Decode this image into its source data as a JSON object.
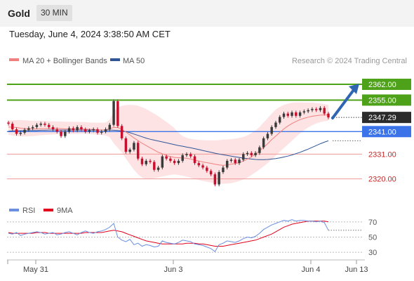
{
  "header": {
    "title": "Gold",
    "timeframe": "30 MIN"
  },
  "timestamp": "Tuesday, June 4, 2024 3:38:50 AM CET",
  "legend": {
    "ma20_label": "MA 20 + Bollinger Bands",
    "ma50_label": "MA 50",
    "credit": "Research © 2024 Trading Central",
    "rsi_label": "RSI",
    "rsi_ma_label": "9MA"
  },
  "colors": {
    "ma20": "#f08080",
    "band_fill": "#fde3e3",
    "ma50": "#2f5597",
    "green_level": "#4ea21a",
    "blue_level": "#3b73e8",
    "red_level": "#ef9a9a",
    "candle_up": "#3a3a3a",
    "candle_down": "#c8102e",
    "arrow": "#2e66b3",
    "rsi": "#6a8ee0",
    "rsi_ma": "#e2001a"
  },
  "chart_data": {
    "type": "candlestick",
    "instrument": "Gold",
    "timeframe": "30 MIN",
    "x_tick_labels": [
      "May 31",
      "Jun 3",
      "Jun 4",
      "Jun 13"
    ],
    "ylim": [
      2315,
      2367
    ],
    "current_price": 2347.29,
    "levels": [
      {
        "value": "2362.00",
        "style": "resistance",
        "color": "green"
      },
      {
        "value": "2355.00",
        "style": "resistance",
        "color": "green"
      },
      {
        "value": "2341.00",
        "style": "pivot",
        "color": "blue"
      },
      {
        "value": "2331.00",
        "style": "support",
        "color": "red"
      },
      {
        "value": "2320.00",
        "style": "support",
        "color": "red"
      }
    ],
    "forecast_arrow": {
      "from": 2347,
      "to": 2362
    },
    "close": [
      2344.5,
      2342.0,
      2340.0,
      2340.5,
      2341.8,
      2342.5,
      2343.0,
      2344.0,
      2344.5,
      2344.0,
      2343.0,
      2342.0,
      2341.0,
      2339.0,
      2341.0,
      2342.5,
      2341.5,
      2343.0,
      2342.0,
      2341.0,
      2341.5,
      2342.0,
      2340.5,
      2341.0,
      2342.0,
      2344.0,
      2354.5,
      2343.5,
      2338.0,
      2332.0,
      2333.0,
      2336.0,
      2329.0,
      2326.5,
      2328.0,
      2327.5,
      2324.0,
      2325.0,
      2330.0,
      2329.0,
      2328.0,
      2327.0,
      2328.0,
      2330.5,
      2331.0,
      2330.0,
      2327.0,
      2326.0,
      2325.0,
      2323.5,
      2322.0,
      2317.5,
      2323.0,
      2325.0,
      2328.0,
      2328.5,
      2327.0,
      2328.5,
      2331.0,
      2331.5,
      2330.5,
      2331.5,
      2334.0,
      2338.0,
      2340.0,
      2343.0,
      2345.0,
      2347.5,
      2349.0,
      2348.0,
      2349.5,
      2348.0,
      2349.5,
      2350.0,
      2350.5,
      2351.0,
      2350.5,
      2351.5,
      2349.0,
      2347.29
    ],
    "ma20": [
      2343.0,
      2343.0,
      2342.8,
      2342.5,
      2342.3,
      2342.2,
      2342.2,
      2342.2,
      2342.3,
      2342.3,
      2342.4,
      2342.4,
      2342.4,
      2342.3,
      2342.2,
      2342.2,
      2342.2,
      2342.2,
      2342.2,
      2342.1,
      2342.0,
      2342.0,
      2341.8,
      2341.7,
      2341.8,
      2342.3,
      2342.8,
      2342.8,
      2342.0,
      2340.8,
      2339.5,
      2338.2,
      2337.0,
      2335.8,
      2334.8,
      2333.8,
      2332.8,
      2331.8,
      2331.2,
      2330.4,
      2329.9,
      2329.5,
      2329.4,
      2329.3,
      2329.1,
      2328.8,
      2328.3,
      2327.9,
      2327.5,
      2327.2,
      2326.9,
      2326.5,
      2326.2,
      2326.0,
      2326.2,
      2326.5,
      2326.8,
      2327.2,
      2327.9,
      2328.8,
      2329.8,
      2331.0,
      2332.4,
      2334.0,
      2335.6,
      2337.4,
      2339.0,
      2340.6,
      2342.2,
      2343.5,
      2344.6,
      2345.5,
      2346.3,
      2346.9,
      2347.4,
      2347.8,
      2348.1,
      2348.3,
      2348.4,
      2348.4
    ],
    "bb_upper": [
      2345.8,
      2346.0,
      2346.1,
      2346.1,
      2346.0,
      2345.9,
      2345.8,
      2345.8,
      2345.8,
      2345.7,
      2345.6,
      2345.6,
      2345.5,
      2345.5,
      2345.4,
      2345.4,
      2345.3,
      2345.3,
      2345.2,
      2345.2,
      2345.0,
      2345.0,
      2344.9,
      2344.9,
      2345.0,
      2346.2,
      2350.0,
      2351.8,
      2352.4,
      2352.8,
      2352.9,
      2352.8,
      2352.5,
      2351.8,
      2351.0,
      2350.0,
      2349.0,
      2347.8,
      2346.6,
      2345.3,
      2344.0,
      2342.4,
      2340.5,
      2339.0,
      2338.2,
      2337.8,
      2337.5,
      2337.3,
      2337.2,
      2337.1,
      2337.1,
      2337.1,
      2337.2,
      2337.4,
      2337.5,
      2337.7,
      2337.9,
      2338.2,
      2338.6,
      2339.3,
      2340.3,
      2341.5,
      2343.0,
      2345.0,
      2347.0,
      2349.0,
      2350.8,
      2352.0,
      2352.9,
      2353.4,
      2353.8,
      2354.0,
      2354.0,
      2353.9,
      2353.9,
      2353.9,
      2353.7,
      2353.5,
      2353.2,
      2352.8
    ],
    "bb_lower": [
      2339.6,
      2339.3,
      2339.0,
      2338.8,
      2338.8,
      2338.9,
      2339.0,
      2339.2,
      2339.4,
      2339.5,
      2339.6,
      2339.7,
      2339.8,
      2339.8,
      2339.9,
      2339.9,
      2340.0,
      2340.0,
      2340.1,
      2340.1,
      2340.0,
      2339.8,
      2339.6,
      2339.5,
      2339.3,
      2338.5,
      2335.8,
      2333.8,
      2331.8,
      2329.0,
      2326.5,
      2324.0,
      2322.0,
      2320.5,
      2320.0,
      2320.1,
      2320.3,
      2320.6,
      2321.1,
      2321.4,
      2321.7,
      2322.0,
      2321.7,
      2321.4,
      2321.0,
      2320.5,
      2320.0,
      2319.5,
      2319.1,
      2318.7,
      2318.4,
      2318.1,
      2317.9,
      2317.8,
      2317.9,
      2318.1,
      2318.5,
      2319.0,
      2319.7,
      2320.6,
      2321.7,
      2322.9,
      2324.2,
      2325.5,
      2327.0,
      2328.6,
      2330.3,
      2332.0,
      2333.7,
      2335.3,
      2337.0,
      2338.6,
      2340.2,
      2341.6,
      2342.8,
      2343.8,
      2344.6,
      2345.2,
      2345.6,
      2345.8
    ],
    "ma50": [
      2341.2,
      2341.3,
      2341.3,
      2341.4,
      2341.4,
      2341.5,
      2341.5,
      2341.5,
      2341.6,
      2341.6,
      2341.7,
      2341.7,
      2341.7,
      2341.7,
      2341.7,
      2341.7,
      2341.7,
      2341.7,
      2341.7,
      2341.7,
      2341.7,
      2341.7,
      2341.7,
      2341.7,
      2341.7,
      2341.7,
      2341.6,
      2341.5,
      2341.3,
      2341.0,
      2340.5,
      2339.9,
      2339.3,
      2338.7,
      2338.1,
      2337.6,
      2337.2,
      2336.8,
      2336.4,
      2336.0,
      2335.6,
      2335.2,
      2334.8,
      2334.5,
      2334.1,
      2333.8,
      2333.4,
      2333.0,
      2332.6,
      2332.2,
      2331.8,
      2331.4,
      2331.0,
      2330.7,
      2330.4,
      2330.1,
      2329.8,
      2329.5,
      2329.2,
      2329.0,
      2328.8,
      2328.6,
      2328.5,
      2328.5,
      2328.6,
      2328.8,
      2329.0,
      2329.3,
      2329.7,
      2330.1,
      2330.6,
      2331.2,
      2331.8,
      2332.5,
      2333.2,
      2334.0,
      2334.8,
      2335.6,
      2336.3,
      2336.9
    ],
    "rsi_axis": {
      "ticks": [
        "70",
        "50",
        "30"
      ],
      "ylim": [
        20,
        80
      ]
    },
    "rsi": [
      55,
      54,
      56,
      52,
      54,
      55,
      56,
      57,
      56,
      54,
      55,
      56,
      53,
      54,
      56,
      57,
      55,
      53,
      56,
      58,
      56,
      55,
      57,
      58,
      60,
      63,
      68,
      50,
      46,
      44,
      47,
      40,
      42,
      38,
      40,
      39,
      37,
      38,
      45,
      43,
      42,
      41,
      43,
      46,
      45,
      44,
      41,
      40,
      39,
      37,
      35,
      31,
      40,
      42,
      45,
      44,
      43,
      45,
      48,
      50,
      49,
      51,
      55,
      60,
      63,
      66,
      68,
      70,
      72,
      71,
      73,
      71,
      72,
      72,
      71,
      71,
      70,
      71,
      69,
      59
    ],
    "rsi_ma": [
      56,
      55,
      55,
      55,
      55,
      55,
      55,
      56,
      56,
      56,
      55,
      55,
      55,
      55,
      55,
      55,
      55,
      55,
      55,
      56,
      56,
      56,
      56,
      56,
      57,
      58,
      59,
      58,
      57,
      55,
      53,
      51,
      49,
      47,
      45,
      44,
      43,
      42,
      41,
      41,
      41,
      41,
      41,
      41,
      42,
      42,
      42,
      41,
      41,
      40,
      39,
      38,
      38,
      38,
      39,
      40,
      41,
      42,
      43,
      44,
      45,
      46,
      48,
      50,
      52,
      54,
      57,
      60,
      63,
      65,
      67,
      68,
      69,
      70,
      71,
      71,
      71,
      71,
      71,
      70
    ]
  }
}
